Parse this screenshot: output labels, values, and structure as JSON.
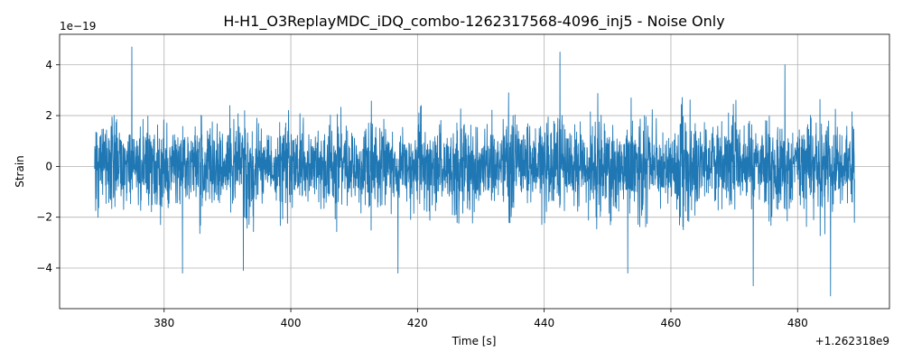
{
  "chart_data": {
    "type": "line",
    "title": "H-H1_O3ReplayMDC_iDQ_combo-1262317568-4096_inj5 - Noise Only",
    "xlabel": "Time [s]",
    "ylabel": "Strain",
    "x_offset_text": "+1.262318e9",
    "y_scale_text": "1e−19",
    "xlim": [
      363.5,
      494.5
    ],
    "ylim": [
      -5.6,
      5.2
    ],
    "x_range": [
      369,
      489
    ],
    "x_ticks": [
      380,
      400,
      420,
      440,
      460,
      480
    ],
    "x_tick_labels": [
      "380",
      "400",
      "420",
      "440",
      "460",
      "480"
    ],
    "y_ticks": [
      -4,
      -2,
      0,
      2,
      4
    ],
    "y_tick_labels": [
      "−4",
      "−2",
      "0",
      "2",
      "4"
    ],
    "grid": true,
    "series": [
      {
        "color": "#1f77b4",
        "description": "Gaussian-like noise strain time series, amplitude mostly within ±2.5e-19 with peaks up to ~4.7e-19 and troughs down to ~-5.1e-19",
        "typical_amplitude": 2.2,
        "peaks": [
          {
            "x": 374.9,
            "y": 4.7
          },
          {
            "x": 382.9,
            "y": -4.2
          },
          {
            "x": 392.5,
            "y": -4.1
          },
          {
            "x": 416.9,
            "y": -4.2
          },
          {
            "x": 442.5,
            "y": 4.5
          },
          {
            "x": 453.2,
            "y": -4.2
          },
          {
            "x": 473.0,
            "y": -4.7
          },
          {
            "x": 478.0,
            "y": 4.0
          },
          {
            "x": 485.2,
            "y": -5.1
          }
        ]
      }
    ]
  }
}
